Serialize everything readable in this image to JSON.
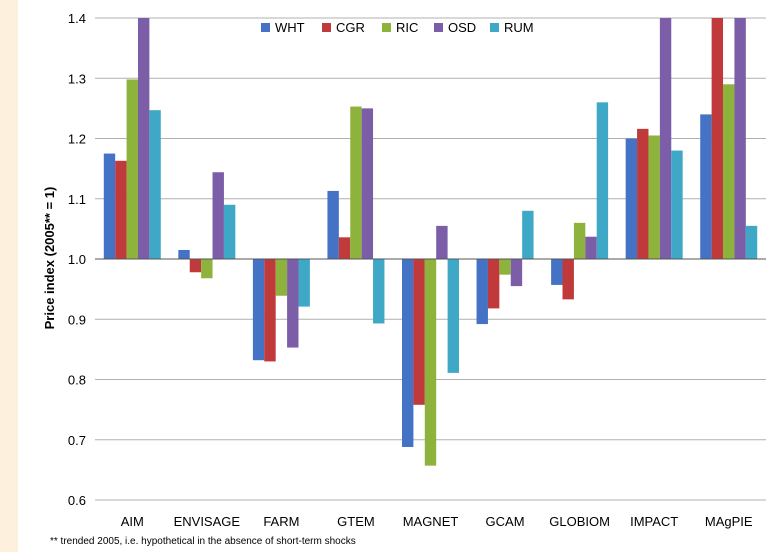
{
  "chart_data": {
    "type": "bar",
    "title": "",
    "xlabel": "",
    "ylabel": "Price index (2005** = 1)",
    "ylim": [
      0.6,
      1.4
    ],
    "yticks": [
      "0.6",
      "0.7",
      "0.8",
      "0.9",
      "1.0",
      "1.1",
      "1.2",
      "1.3",
      "1.4"
    ],
    "baseline": 1.0,
    "grid": "horizontal",
    "legend_position": "top",
    "categories": [
      "AIM",
      "ENVISAGE",
      "FARM",
      "GTEM",
      "MAGNET",
      "GCAM",
      "GLOBIOM",
      "IMPACT",
      "MAgPIE"
    ],
    "series": [
      {
        "name": "WHT",
        "color": "#4472c4",
        "values": [
          1.175,
          1.015,
          0.832,
          1.113,
          0.688,
          0.892,
          0.957,
          1.2,
          1.24
        ]
      },
      {
        "name": "CGR",
        "color": "#c0393b",
        "values": [
          1.163,
          0.978,
          0.83,
          1.036,
          0.758,
          0.918,
          0.933,
          1.216,
          1.4
        ]
      },
      {
        "name": "RIC",
        "color": "#8db33c",
        "values": [
          1.298,
          0.968,
          0.939,
          1.253,
          0.657,
          0.974,
          1.06,
          1.205,
          1.29
        ]
      },
      {
        "name": "OSD",
        "color": "#7b5ea7",
        "values": [
          1.4,
          1.144,
          0.853,
          1.25,
          1.055,
          0.955,
          1.037,
          1.4,
          1.4
        ]
      },
      {
        "name": "RUM",
        "color": "#3ea8c6",
        "values": [
          1.247,
          1.09,
          0.921,
          0.893,
          0.811,
          1.08,
          1.26,
          1.18,
          1.055
        ]
      }
    ],
    "footnote": "** trended 2005, i.e. hypothetical in the absence of short-term shocks"
  }
}
